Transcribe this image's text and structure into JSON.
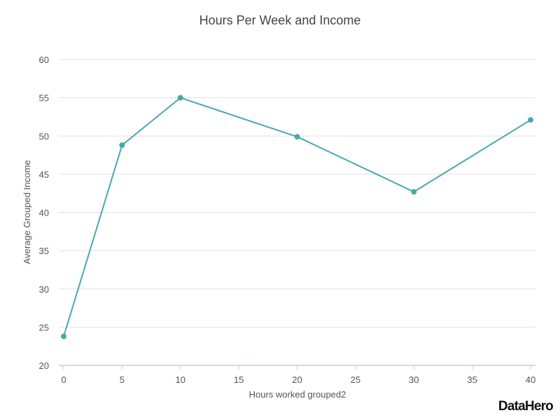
{
  "chart_data": {
    "type": "line",
    "title": "Hours Per Week and Income",
    "xlabel": "Hours worked grouped2",
    "ylabel": "Average Grouped Income",
    "x": [
      0,
      5,
      10,
      20,
      30,
      40
    ],
    "series": [
      {
        "values": [
          23.8,
          48.8,
          55.0,
          49.9,
          42.7,
          52.1
        ]
      }
    ],
    "xlim": [
      0,
      40
    ],
    "ylim": [
      20,
      60
    ],
    "x_ticks": [
      0,
      5,
      10,
      15,
      20,
      25,
      30,
      35,
      40
    ],
    "y_ticks": [
      20,
      25,
      30,
      35,
      40,
      45,
      50,
      55,
      60
    ],
    "grid": "horizontal",
    "line_color": "#4aa8ad",
    "grid_color": "#e2e2e2",
    "text_color": "#555555"
  },
  "branding": {
    "logo_text": "DataHero"
  }
}
